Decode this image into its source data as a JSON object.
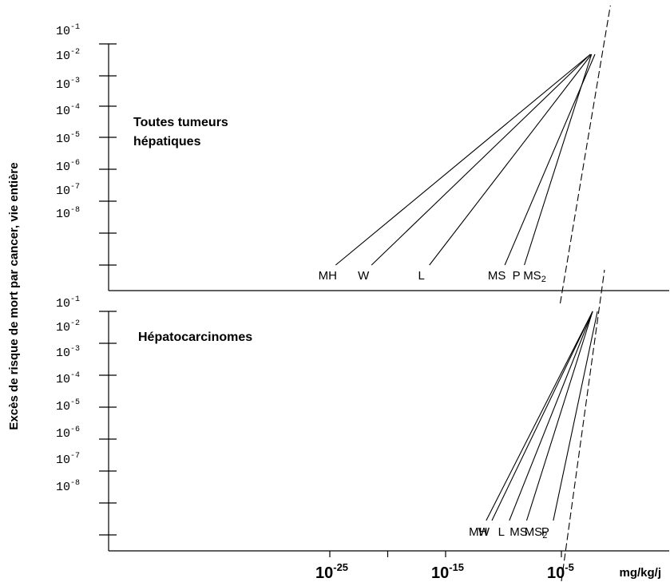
{
  "chart_data": {
    "type": "line",
    "ylabel": "Excès de risque de mort par cancer, vie entière",
    "x_unit": "mg/kg/j",
    "x_scale": "log",
    "x_ticks": [
      {
        "base": "10",
        "exp": "-25",
        "value": 1e-25
      },
      {
        "base": "10",
        "exp": "-15",
        "value": 1e-15
      },
      {
        "base": "10",
        "exp": "-5",
        "value": 1e-05
      }
    ],
    "y_scale": "log",
    "y_ticks": [
      {
        "base": "10",
        "exp": "-1"
      },
      {
        "base": "10",
        "exp": "-2"
      },
      {
        "base": "10",
        "exp": "-3"
      },
      {
        "base": "10",
        "exp": "-4"
      },
      {
        "base": "10",
        "exp": "-5"
      },
      {
        "base": "10",
        "exp": "-6"
      },
      {
        "base": "10",
        "exp": "-7"
      },
      {
        "base": "10",
        "exp": "-8"
      }
    ],
    "panels": [
      {
        "title_lines": [
          "Toutes tumeurs",
          "hépatiques"
        ],
        "series": [
          {
            "name": "MH",
            "sub": "",
            "style": "solid",
            "x_start": 3.2e-25,
            "x_end": 0.0032
          },
          {
            "name": "W",
            "sub": "",
            "style": "solid",
            "x_start": 4e-22,
            "x_end": 0.0032
          },
          {
            "name": "L",
            "sub": "",
            "style": "solid",
            "x_start": 4e-17,
            "x_end": 0.004
          },
          {
            "name": "MS",
            "sub": "",
            "style": "solid",
            "x_start": 1.3e-10,
            "x_end": 0.0079
          },
          {
            "name": "P",
            "sub": "",
            "style": "solid",
            "x_start": 6.3e-09,
            "x_end": 0.004
          },
          {
            "name": "MS",
            "sub": "2",
            "style": "dashed",
            "x_start": 7.9e-06,
            "x_end": 0.0032
          }
        ]
      },
      {
        "title_lines": [
          "Hépatocarcinomes"
        ],
        "series": [
          {
            "name": "MH",
            "sub": "",
            "style": "solid",
            "x_start": 3.2e-12,
            "x_end": 0.005
          },
          {
            "name": "W",
            "sub": "",
            "style": "solid",
            "x_start": 1e-11,
            "x_end": 0.005
          },
          {
            "name": "L",
            "sub": "",
            "style": "solid",
            "x_start": 3.2e-10,
            "x_end": 0.005
          },
          {
            "name": "MS",
            "sub": "",
            "style": "solid",
            "x_start": 1e-08,
            "x_end": 0.005
          },
          {
            "name": "P",
            "sub": "",
            "style": "solid",
            "x_start": 2e-06,
            "x_end": 0.013
          },
          {
            "name": "MS",
            "sub": "2",
            "style": "dashed",
            "x_start": 1e-05,
            "x_end": 0.0016
          }
        ]
      }
    ]
  }
}
